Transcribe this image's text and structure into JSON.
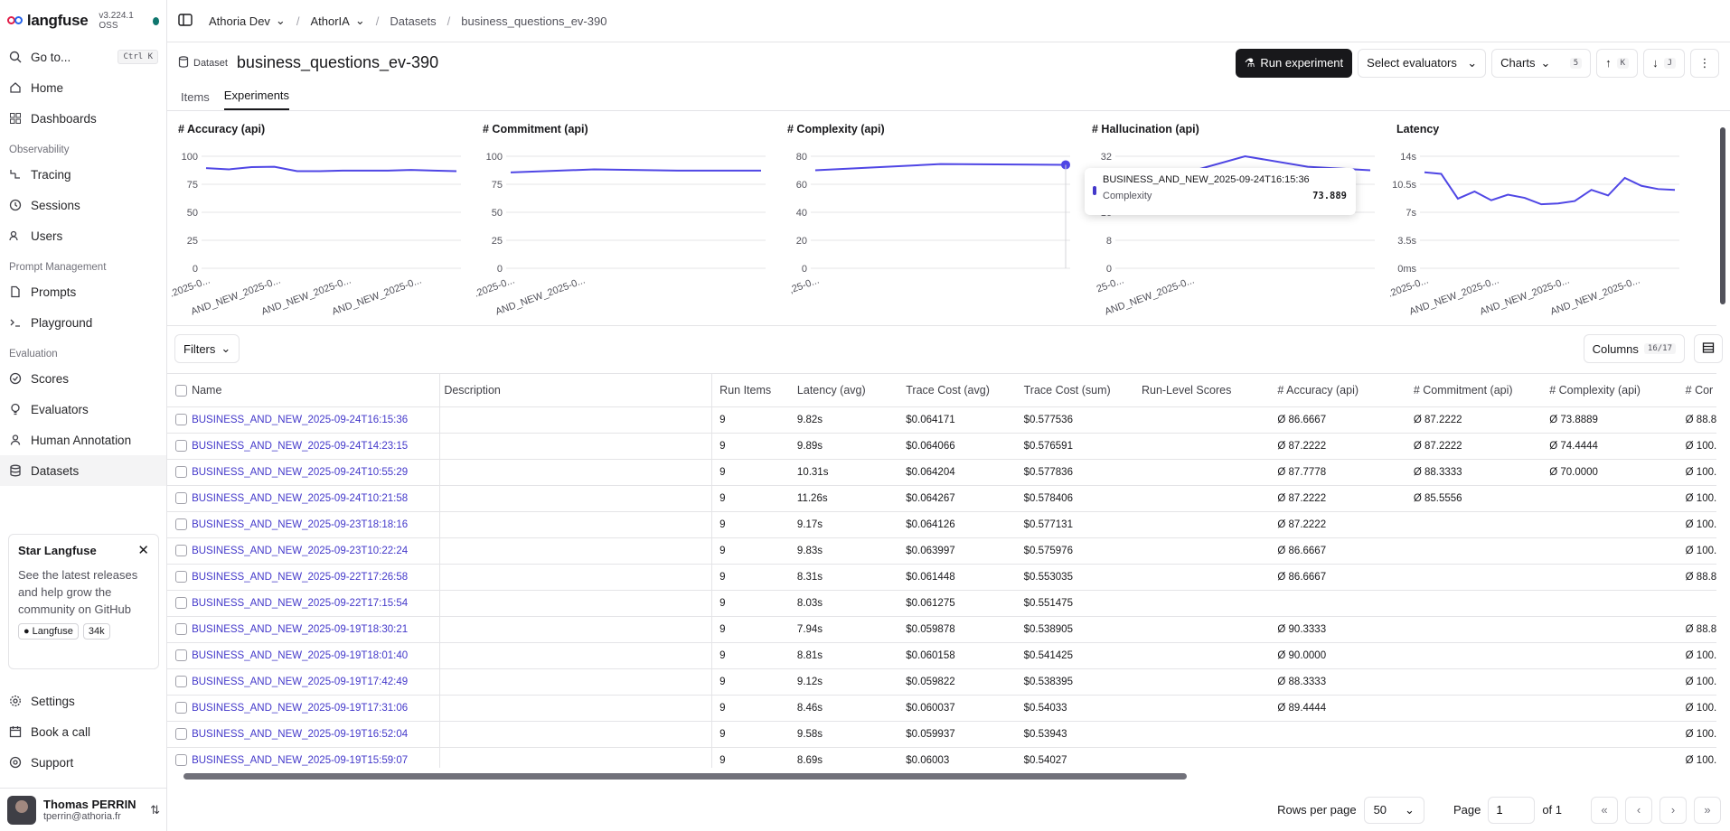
{
  "app": {
    "name": "langfuse",
    "version": "v3.224.1 OSS"
  },
  "sidebar": {
    "goto": {
      "label": "Go to...",
      "shortcut": "Ctrl K"
    },
    "items_top": [
      {
        "label": "Home",
        "icon": "home-icon"
      },
      {
        "label": "Dashboards",
        "icon": "dashboard-icon"
      }
    ],
    "sections": [
      {
        "title": "Observability",
        "items": [
          {
            "label": "Tracing"
          },
          {
            "label": "Sessions"
          },
          {
            "label": "Users"
          }
        ]
      },
      {
        "title": "Prompt Management",
        "items": [
          {
            "label": "Prompts"
          },
          {
            "label": "Playground"
          }
        ]
      },
      {
        "title": "Evaluation",
        "items": [
          {
            "label": "Scores"
          },
          {
            "label": "Evaluators"
          },
          {
            "label": "Human Annotation"
          },
          {
            "label": "Datasets"
          }
        ]
      }
    ],
    "star_card": {
      "title": "Star Langfuse",
      "body": "See the latest releases and help grow the community on GitHub",
      "gh_label": "Langfuse",
      "gh_count": "34k"
    },
    "bottom": [
      {
        "label": "Settings"
      },
      {
        "label": "Book a call"
      },
      {
        "label": "Support"
      }
    ],
    "user": {
      "name": "Thomas PERRIN",
      "email": "tperrin@athoria.fr"
    }
  },
  "breadcrumb": {
    "org": "Athoria Dev",
    "project": "AthorIA",
    "section": "Datasets",
    "dataset": "business_questions_ev-390"
  },
  "header": {
    "badge": "Dataset",
    "title": "business_questions_ev-390",
    "run_experiment": "Run experiment",
    "select_evaluators": "Select evaluators",
    "charts": "Charts",
    "charts_count": "5",
    "up_key": "K",
    "down_key": "J"
  },
  "tabs": [
    {
      "label": "Items"
    },
    {
      "label": "Experiments",
      "active": true
    }
  ],
  "chart_data": [
    {
      "type": "line",
      "title": "# Accuracy (api)",
      "yticks": [
        "100",
        "75",
        "50",
        "25",
        "0"
      ],
      "ylim": [
        0,
        100
      ],
      "xticks": [
        ".2025-0...",
        "AND_NEW_2025-0...",
        "AND_NEW_2025-0...",
        "AND_NEW_2025-0..."
      ],
      "values": [
        89.4,
        88.3,
        90.3,
        90.6,
        86.7,
        86.7,
        87.2,
        87.2,
        87.2,
        87.8,
        87.2,
        86.7
      ]
    },
    {
      "type": "line",
      "title": "# Commitment (api)",
      "yticks": [
        "100",
        "75",
        "50",
        "25",
        "0"
      ],
      "ylim": [
        0,
        100
      ],
      "xticks": [
        ".2025-0...",
        "AND_NEW_2025-0..."
      ],
      "values": [
        85.6,
        88.3,
        87.2,
        87.2
      ]
    },
    {
      "type": "line",
      "title": "# Complexity (api)",
      "yticks": [
        "80",
        "60",
        "40",
        "20",
        "0"
      ],
      "ylim": [
        0,
        80
      ],
      "xticks": [
        ",25-0..."
      ],
      "values": [
        70.0,
        74.4,
        73.9
      ]
    },
    {
      "type": "line",
      "title": "# Hallucination (api)",
      "yticks": [
        "32",
        "24",
        "16",
        "8",
        "0"
      ],
      "ylim": [
        0,
        32
      ],
      "xticks": [
        "25-0...",
        "AND_NEW_2025-0..."
      ],
      "values": [
        24,
        27,
        32,
        29,
        28
      ]
    },
    {
      "type": "line",
      "title": "Latency",
      "yticks": [
        "14s",
        "10.5s",
        "7s",
        "3.5s",
        "0ms"
      ],
      "ylim": [
        0,
        14
      ],
      "xticks": [
        ".2025-0...",
        "AND_NEW_2025-0...",
        "AND_NEW_2025-0...",
        "AND_NEW_2025-0..."
      ],
      "values": [
        12.0,
        11.8,
        8.7,
        9.6,
        8.5,
        9.2,
        8.8,
        8.0,
        8.1,
        8.4,
        9.8,
        9.1,
        11.3,
        10.3,
        9.9,
        9.8
      ]
    }
  ],
  "tooltip": {
    "title": "BUSINESS_AND_NEW_2025-09-24T16:15:36",
    "label": "Complexity",
    "value": "73.889"
  },
  "filters": {
    "label": "Filters",
    "columns": "Columns",
    "columns_count": "16/17"
  },
  "table": {
    "headers": [
      "Name",
      "Description",
      "Run Items",
      "Latency (avg)",
      "Trace Cost (avg)",
      "Trace Cost (sum)",
      "Run-Level Scores",
      "# Accuracy (api)",
      "# Commitment (api)",
      "# Complexity (api)",
      "# Cor"
    ],
    "rows": [
      [
        "BUSINESS_AND_NEW_2025-09-24T16:15:36",
        "",
        "9",
        "9.82s",
        "$0.064171",
        "$0.577536",
        "",
        "Ø 86.6667",
        "Ø 87.2222",
        "Ø 73.8889",
        "Ø 88.8"
      ],
      [
        "BUSINESS_AND_NEW_2025-09-24T14:23:15",
        "",
        "9",
        "9.89s",
        "$0.064066",
        "$0.576591",
        "",
        "Ø 87.2222",
        "Ø 87.2222",
        "Ø 74.4444",
        "Ø 100."
      ],
      [
        "BUSINESS_AND_NEW_2025-09-24T10:55:29",
        "",
        "9",
        "10.31s",
        "$0.064204",
        "$0.577836",
        "",
        "Ø 87.7778",
        "Ø 88.3333",
        "Ø 70.0000",
        "Ø 100."
      ],
      [
        "BUSINESS_AND_NEW_2025-09-24T10:21:58",
        "",
        "9",
        "11.26s",
        "$0.064267",
        "$0.578406",
        "",
        "Ø 87.2222",
        "Ø 85.5556",
        "",
        "Ø 100."
      ],
      [
        "BUSINESS_AND_NEW_2025-09-23T18:18:16",
        "",
        "9",
        "9.17s",
        "$0.064126",
        "$0.577131",
        "",
        "Ø 87.2222",
        "",
        "",
        "Ø 100."
      ],
      [
        "BUSINESS_AND_NEW_2025-09-23T10:22:24",
        "",
        "9",
        "9.83s",
        "$0.063997",
        "$0.575976",
        "",
        "Ø 86.6667",
        "",
        "",
        "Ø 100."
      ],
      [
        "BUSINESS_AND_NEW_2025-09-22T17:26:58",
        "",
        "9",
        "8.31s",
        "$0.061448",
        "$0.553035",
        "",
        "Ø 86.6667",
        "",
        "",
        "Ø 88.8"
      ],
      [
        "BUSINESS_AND_NEW_2025-09-22T17:15:54",
        "",
        "9",
        "8.03s",
        "$0.061275",
        "$0.551475",
        "",
        "",
        "",
        "",
        ""
      ],
      [
        "BUSINESS_AND_NEW_2025-09-19T18:30:21",
        "",
        "9",
        "7.94s",
        "$0.059878",
        "$0.538905",
        "",
        "Ø 90.3333",
        "",
        "",
        "Ø 88.8"
      ],
      [
        "BUSINESS_AND_NEW_2025-09-19T18:01:40",
        "",
        "9",
        "8.81s",
        "$0.060158",
        "$0.541425",
        "",
        "Ø 90.0000",
        "",
        "",
        "Ø 100."
      ],
      [
        "BUSINESS_AND_NEW_2025-09-19T17:42:49",
        "",
        "9",
        "9.12s",
        "$0.059822",
        "$0.538395",
        "",
        "Ø 88.3333",
        "",
        "",
        "Ø 100."
      ],
      [
        "BUSINESS_AND_NEW_2025-09-19T17:31:06",
        "",
        "9",
        "8.46s",
        "$0.060037",
        "$0.54033",
        "",
        "Ø 89.4444",
        "",
        "",
        "Ø 100."
      ],
      [
        "BUSINESS_AND_NEW_2025-09-19T16:52:04",
        "",
        "9",
        "9.58s",
        "$0.059937",
        "$0.53943",
        "",
        "",
        "",
        "",
        "Ø 100."
      ],
      [
        "BUSINESS_AND_NEW_2025-09-19T15:59:07",
        "",
        "9",
        "8.69s",
        "$0.06003",
        "$0.54027",
        "",
        "",
        "",
        "",
        "Ø 100."
      ]
    ]
  },
  "pager": {
    "rows_per_page_label": "Rows per page",
    "rows_per_page": "50",
    "page_label": "Page",
    "page": "1",
    "of": "of 1"
  },
  "colors": {
    "line": "#4f46e5",
    "link": "#4338ca"
  }
}
